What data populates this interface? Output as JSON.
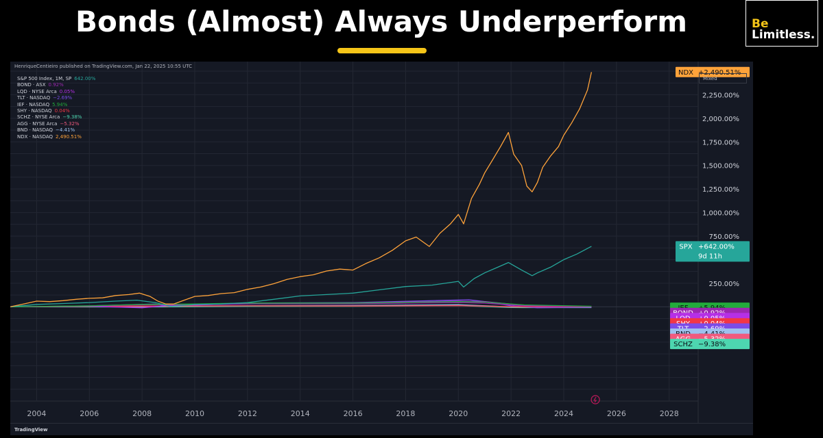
{
  "headline": "Bonds (Almost) Always Underperform",
  "brand": {
    "line1": "Be",
    "line2": "Limitless."
  },
  "tradingview": {
    "publisher_line": "HenriqueCentieiro published on TradingView.com, Jan 22, 2025 10:55 UTC",
    "scale_mode": "Mixed",
    "footer_logo": "TradingView",
    "legend": [
      {
        "name": "S&P 500 Index, 1M, SP",
        "value": "642.00%",
        "color": "#26a69a"
      },
      {
        "name": "BOND · ASX",
        "value": "0.92%",
        "color": "#9c27b0"
      },
      {
        "name": "LQD · NYSE Arca",
        "value": "0.05%",
        "color": "#b530e6"
      },
      {
        "name": "TLT · NASDAQ",
        "value": "−2.69%",
        "color": "#7b4ce8"
      },
      {
        "name": "IEF · NASDAQ",
        "value": "5.94%",
        "color": "#22ab3b"
      },
      {
        "name": "SHY · NASDAQ",
        "value": "0.04%",
        "color": "#f23645"
      },
      {
        "name": "SCHZ · NYSE Arca",
        "value": "−9.38%",
        "color": "#4dd6b0"
      },
      {
        "name": "AGG · NYSE Arca",
        "value": "−5.32%",
        "color": "#f05a7e"
      },
      {
        "name": "BND · NASDAQ",
        "value": "−4.41%",
        "color": "#9ec1ee"
      },
      {
        "name": "NDX · NASDAQ",
        "value": "2,490.51%",
        "color": "#ffa33a"
      }
    ]
  },
  "chart_data": {
    "type": "line",
    "xlim": [
      2003,
      2029.1
    ],
    "ylim": [
      -1000,
      2500
    ],
    "x_ticks": [
      2004,
      2006,
      2008,
      2010,
      2012,
      2014,
      2016,
      2018,
      2020,
      2022,
      2024,
      2026,
      2028
    ],
    "y_ticks": [
      {
        "value": 250,
        "label": "250.00%"
      },
      {
        "value": 750,
        "label": "750.00%"
      },
      {
        "value": 1000,
        "label": "1,000.00%"
      },
      {
        "value": 1250,
        "label": "1,250.00%"
      },
      {
        "value": 1500,
        "label": "1,500.00%"
      },
      {
        "value": 1750,
        "label": "1,750.00%"
      },
      {
        "value": 2000,
        "label": "2,000.00%"
      },
      {
        "value": 2250,
        "label": "2,250.00%"
      }
    ],
    "series": [
      {
        "name": "NDX",
        "color": "#ffa33a",
        "label": "NDX",
        "value_label": "+2,490.51%",
        "label_y": 2490.51,
        "x": [
          2003,
          2003.5,
          2004,
          2004.5,
          2005,
          2005.5,
          2006,
          2006.5,
          2007,
          2007.5,
          2007.9,
          2008.3,
          2008.6,
          2008.9,
          2009.2,
          2009.6,
          2010,
          2010.5,
          2011,
          2011.5,
          2012,
          2012.5,
          2013,
          2013.5,
          2014,
          2014.5,
          2015,
          2015.5,
          2016,
          2016.5,
          2017,
          2017.5,
          2018,
          2018.4,
          2018.9,
          2019.3,
          2019.7,
          2020,
          2020.2,
          2020.5,
          2020.8,
          2021,
          2021.3,
          2021.6,
          2021.9,
          2022.1,
          2022.4,
          2022.6,
          2022.8,
          2023,
          2023.2,
          2023.5,
          2023.8,
          2024,
          2024.3,
          2024.6,
          2024.9,
          2025.05
        ],
        "y": [
          0,
          30,
          60,
          55,
          65,
          80,
          90,
          95,
          120,
          130,
          145,
          110,
          60,
          30,
          30,
          70,
          110,
          120,
          140,
          150,
          185,
          210,
          245,
          290,
          320,
          340,
          380,
          400,
          390,
          460,
          520,
          600,
          700,
          740,
          640,
          780,
          880,
          980,
          880,
          1150,
          1300,
          1420,
          1560,
          1700,
          1850,
          1620,
          1500,
          1280,
          1220,
          1320,
          1480,
          1600,
          1700,
          1820,
          1950,
          2100,
          2300,
          2490
        ]
      },
      {
        "name": "SPX",
        "color": "#26a69a",
        "label": "SPX",
        "value_label": "+642.00%",
        "value_sublabel": "9d 11h",
        "label_y": 642,
        "x": [
          2003,
          2004,
          2005,
          2006,
          2007,
          2007.8,
          2008.5,
          2009.1,
          2009.6,
          2010,
          2011,
          2012,
          2013,
          2014,
          2015,
          2016,
          2017,
          2018,
          2019,
          2020,
          2020.2,
          2020.6,
          2021,
          2021.5,
          2021.9,
          2022.4,
          2022.8,
          2023,
          2023.5,
          2024,
          2024.5,
          2025.05
        ],
        "y": [
          0,
          25,
          35,
          45,
          60,
          70,
          45,
          5,
          15,
          25,
          30,
          45,
          80,
          115,
          130,
          145,
          180,
          215,
          230,
          270,
          210,
          300,
          360,
          420,
          470,
          390,
          330,
          360,
          420,
          500,
          560,
          642
        ]
      },
      {
        "name": "IEF",
        "color": "#22ab3b",
        "label": "IEF",
        "value_label": "+5.94%",
        "label_y": -10,
        "x": [
          2003,
          2006,
          2008,
          2010,
          2012,
          2016,
          2020,
          2021,
          2022.5,
          2025.05
        ],
        "y": [
          0,
          10,
          25,
          30,
          40,
          40,
          55,
          50,
          20,
          6
        ]
      },
      {
        "name": "BOND",
        "color": "#9c27b0",
        "label": "BOND",
        "value_label": "+0.92%",
        "label_y": -65,
        "x": [
          2003,
          2006,
          2008,
          2010,
          2012,
          2016,
          2020,
          2021,
          2022.5,
          2025.05
        ],
        "y": [
          0,
          8,
          20,
          25,
          32,
          32,
          45,
          40,
          10,
          1
        ]
      },
      {
        "name": "LQD",
        "color": "#b530e6",
        "label": "LQD",
        "value_label": "+0.05%",
        "label_y": -120,
        "x": [
          2003,
          2006,
          2008,
          2009,
          2010,
          2013,
          2016,
          2020,
          2021,
          2022.5,
          2025.05
        ],
        "y": [
          0,
          6,
          -10,
          15,
          22,
          35,
          42,
          60,
          55,
          15,
          0
        ]
      },
      {
        "name": "SHY",
        "color": "#f23645",
        "label": "SHY",
        "value_label": "+0.04%",
        "label_y": -175,
        "x": [
          2003,
          2008,
          2012,
          2016,
          2020,
          2022,
          2025.05
        ],
        "y": [
          0,
          8,
          10,
          8,
          12,
          2,
          0
        ]
      },
      {
        "name": "TLT",
        "color": "#7b4ce8",
        "label": "TLT",
        "value_label": "−2.69%",
        "label_y": -230,
        "x": [
          2003,
          2006,
          2008.5,
          2009,
          2012,
          2016,
          2020.4,
          2021,
          2022,
          2023,
          2025.05
        ],
        "y": [
          0,
          10,
          30,
          5,
          40,
          45,
          75,
          55,
          10,
          -10,
          -3
        ]
      },
      {
        "name": "BND",
        "color": "#9ec1ee",
        "label": "BND",
        "value_label": "−4.41%",
        "label_y": -285,
        "x": [
          2003,
          2008,
          2012,
          2016,
          2020,
          2022,
          2025.05
        ],
        "y": [
          0,
          5,
          12,
          14,
          22,
          0,
          -4
        ]
      },
      {
        "name": "AGG",
        "color": "#f05a7e",
        "label": "AGG",
        "value_label": "−5.32%",
        "label_y": -340,
        "x": [
          2003,
          2008,
          2012,
          2016,
          2020,
          2022,
          2025.05
        ],
        "y": [
          0,
          4,
          10,
          12,
          20,
          -2,
          -5
        ]
      },
      {
        "name": "SCHZ",
        "color": "#4dd6b0",
        "label": "SCHZ",
        "value_label": "−9.38%",
        "label_y": -395,
        "x": [
          2003,
          2008,
          2012,
          2016,
          2020,
          2022,
          2025.05
        ],
        "y": [
          0,
          -2,
          4,
          5,
          12,
          -8,
          -9
        ]
      }
    ],
    "grid": true,
    "legend": "top-left"
  }
}
